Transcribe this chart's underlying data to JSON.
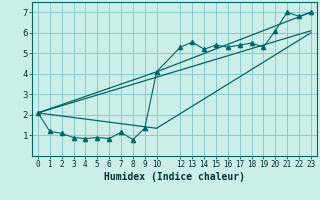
{
  "title": "",
  "xlabel": "Humidex (Indice chaleur)",
  "bg_color": "#cceee8",
  "grid_color": "#88cccc",
  "line_color": "#006666",
  "xlim": [
    -0.5,
    23.5
  ],
  "ylim": [
    0,
    7.5
  ],
  "xticks": [
    0,
    1,
    2,
    3,
    4,
    5,
    6,
    7,
    8,
    9,
    10,
    12,
    13,
    14,
    15,
    16,
    17,
    18,
    19,
    20,
    21,
    22,
    23
  ],
  "yticks": [
    1,
    2,
    3,
    4,
    5,
    6,
    7
  ],
  "scatter_x": [
    0,
    1,
    2,
    3,
    4,
    5,
    6,
    7,
    8,
    9,
    10,
    12,
    13,
    14,
    15,
    16,
    17,
    18,
    19,
    20,
    21,
    22,
    23
  ],
  "scatter_y": [
    2.1,
    1.2,
    1.1,
    0.9,
    0.85,
    0.9,
    0.85,
    1.15,
    0.8,
    1.35,
    4.1,
    5.3,
    5.55,
    5.2,
    5.4,
    5.3,
    5.4,
    5.5,
    5.3,
    6.1,
    7.0,
    6.8,
    7.0
  ],
  "line1_x": [
    0,
    23
  ],
  "line1_y": [
    2.1,
    6.1
  ],
  "line2_x": [
    0,
    10,
    23
  ],
  "line2_y": [
    2.1,
    4.1,
    7.0
  ],
  "line3_x": [
    0,
    10,
    23
  ],
  "line3_y": [
    2.1,
    1.35,
    6.0
  ]
}
